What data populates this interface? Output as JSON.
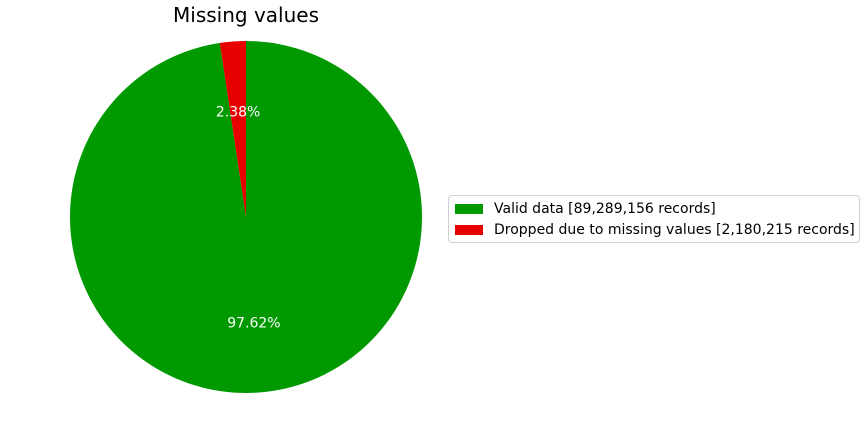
{
  "chart_data": {
    "type": "pie",
    "title": "Missing values",
    "categories": [
      "Valid data [89,289,156 records]",
      "Dropped due to missing values [2,180,215 records]"
    ],
    "values": [
      97.62,
      2.38
    ],
    "value_labels": [
      "97.62%",
      "2.38%"
    ],
    "colors": [
      "#009900",
      "#e60000"
    ],
    "start_angle_deg": 90,
    "direction": "clockwise",
    "legend_position": "right"
  }
}
